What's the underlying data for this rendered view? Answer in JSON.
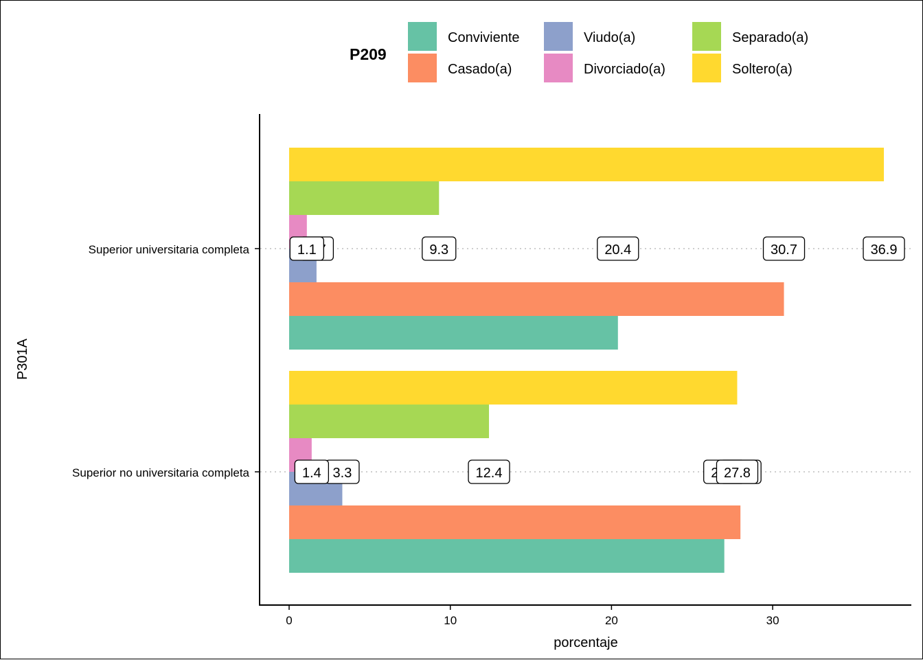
{
  "chart_data": {
    "type": "bar",
    "orientation": "horizontal",
    "title": "",
    "xlabel": "porcentaje",
    "ylabel": "P301A",
    "xlim": [
      -1.8,
      38.5
    ],
    "xticks": [
      0,
      10,
      20,
      30
    ],
    "grid": "dotted horizontal lines at category positions",
    "legend": {
      "title": "P209",
      "placement": "top",
      "entries": [
        "Conviviente",
        "Casado(a)",
        "Viudo(a)",
        "Divorciado(a)",
        "Separado(a)",
        "Soltero(a)"
      ]
    },
    "categories": [
      "Superior universitaria completa",
      "Superior no universitaria completa"
    ],
    "series": [
      {
        "name": "Conviviente",
        "color": "#66C2A5",
        "values": [
          20.4,
          27.0
        ]
      },
      {
        "name": "Casado(a)",
        "color": "#FC8D62",
        "values": [
          30.7,
          28.0
        ]
      },
      {
        "name": "Viudo(a)",
        "color": "#8DA0CB",
        "values": [
          1.7,
          3.3
        ]
      },
      {
        "name": "Divorciado(a)",
        "color": "#E78AC3",
        "values": [
          1.1,
          1.4
        ]
      },
      {
        "name": "Separado(a)",
        "color": "#A6D854",
        "values": [
          9.3,
          12.4
        ]
      },
      {
        "name": "Soltero(a)",
        "color": "#FFD92F",
        "values": [
          36.9,
          27.8
        ]
      }
    ]
  }
}
